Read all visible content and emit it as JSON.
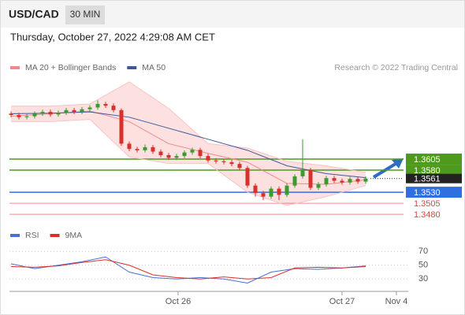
{
  "chart_data": [
    {
      "type": "candlestick",
      "title": "USD/CAD",
      "timeframe": "30 MIN",
      "subtitle": "Thursday, October 27, 2022 4:29:08 AM CET",
      "source": "Research © 2022 Trading Central",
      "xlim": [
        -0.2,
        50.4
      ],
      "ylim": [
        1.3457,
        1.3796
      ],
      "open": [
        1.3708,
        1.3705,
        1.37,
        1.3702,
        1.3708,
        1.3712,
        1.3706,
        1.371,
        1.3716,
        1.3712,
        1.3718,
        1.3722,
        1.373,
        1.3726,
        1.3716,
        1.364,
        1.3628,
        1.3625,
        1.3632,
        1.3622,
        1.3614,
        1.3608,
        1.3612,
        1.362,
        1.3626,
        1.3612,
        1.3602,
        1.36,
        1.3598,
        1.3594,
        1.3585,
        1.3545,
        1.3528,
        1.352,
        1.3538,
        1.3524,
        1.3545,
        1.3566,
        1.358,
        1.354,
        1.3548,
        1.3562,
        1.3556,
        1.3552,
        1.356,
        1.3554
      ],
      "high": [
        1.3713,
        1.371,
        1.3707,
        1.3713,
        1.3717,
        1.3717,
        1.3715,
        1.3721,
        1.3721,
        1.3723,
        1.3727,
        1.3738,
        1.3735,
        1.3731,
        1.372,
        1.3645,
        1.3633,
        1.3638,
        1.3637,
        1.3627,
        1.3619,
        1.3617,
        1.3625,
        1.3631,
        1.3631,
        1.3617,
        1.3607,
        1.3605,
        1.3603,
        1.3599,
        1.359,
        1.355,
        1.3533,
        1.3543,
        1.3543,
        1.355,
        1.3571,
        1.365,
        1.3585,
        1.3553,
        1.3567,
        1.3567,
        1.3561,
        1.3565,
        1.3565,
        1.3566
      ],
      "low": [
        1.37,
        1.3695,
        1.3695,
        1.3697,
        1.3703,
        1.3701,
        1.3701,
        1.3705,
        1.3707,
        1.3707,
        1.3713,
        1.3717,
        1.3721,
        1.3711,
        1.3635,
        1.3623,
        1.362,
        1.362,
        1.3617,
        1.3609,
        1.3603,
        1.3603,
        1.3607,
        1.3615,
        1.3607,
        1.3597,
        1.3595,
        1.3593,
        1.3589,
        1.358,
        1.354,
        1.352,
        1.3512,
        1.3515,
        1.3512,
        1.3519,
        1.354,
        1.3561,
        1.3535,
        1.3535,
        1.3543,
        1.3551,
        1.3547,
        1.3547,
        1.3549,
        1.3549
      ],
      "close": [
        1.3705,
        1.37,
        1.3702,
        1.3708,
        1.3712,
        1.3706,
        1.371,
        1.3716,
        1.3712,
        1.3718,
        1.3722,
        1.373,
        1.3726,
        1.3716,
        1.364,
        1.3628,
        1.3625,
        1.3632,
        1.3622,
        1.3614,
        1.3608,
        1.3612,
        1.362,
        1.3626,
        1.3612,
        1.3602,
        1.36,
        1.3598,
        1.3594,
        1.3585,
        1.3545,
        1.3528,
        1.352,
        1.3538,
        1.3524,
        1.3545,
        1.3566,
        1.358,
        1.354,
        1.3548,
        1.3562,
        1.3556,
        1.3552,
        1.356,
        1.3554,
        1.3561
      ],
      "up_color": "#3a9b2f",
      "down_color": "#d9302c",
      "series": [
        {
          "name": "MA 20 + Bollinger Bands",
          "color": "#f08a8a",
          "band_color": "#fde0e0",
          "x": [
            0,
            5,
            10,
            15,
            20,
            25,
            30,
            35,
            40,
            45
          ],
          "values": [
            1.3702,
            1.3708,
            1.3714,
            1.369,
            1.364,
            1.3618,
            1.3598,
            1.355,
            1.3548,
            1.3558
          ],
          "upper": [
            1.3725,
            1.3725,
            1.373,
            1.378,
            1.372,
            1.364,
            1.363,
            1.36,
            1.359,
            1.3575
          ],
          "lower": [
            1.369,
            1.369,
            1.3695,
            1.361,
            1.3595,
            1.3595,
            1.353,
            1.35,
            1.352,
            1.3545
          ]
        },
        {
          "name": "MA 50",
          "color": "#3a5a9a",
          "x": [
            0,
            5,
            10,
            15,
            20,
            25,
            30,
            35,
            40,
            45
          ],
          "values": [
            1.3708,
            1.3709,
            1.3712,
            1.37,
            1.3675,
            1.365,
            1.3625,
            1.359,
            1.3572,
            1.3563
          ]
        }
      ],
      "levels": [
        {
          "value": 1.3605,
          "color": "#4e9a1c",
          "boxed": true
        },
        {
          "value": {
            "value": 1.358,
            "label": "1.3580"
          },
          "color": "#4e9a1c",
          "boxed": true
        },
        {
          "value": {
            "value": 1.353,
            "label": "1.3530"
          },
          "color": "#2f6fe0",
          "boxed": true
        },
        {
          "value": 1.3505,
          "color": "#e04040",
          "boxed": false
        },
        {
          "value": {
            "value": 1.348,
            "label": "1.3480"
          },
          "color": "#e04040",
          "boxed": false
        }
      ],
      "last": 1.3561,
      "last_color": "#222222"
    },
    {
      "type": "line",
      "xlim": [
        -0.2,
        50.4
      ],
      "ylim": [
        12,
        92
      ],
      "yticks": [
        30,
        50,
        70
      ],
      "xticks": [
        {
          "value": 21.2,
          "label": "Oct 26"
        },
        {
          "value": 42,
          "label": "Oct 27"
        },
        {
          "value": 48.9,
          "label": "Nov 4"
        }
      ],
      "series": [
        {
          "name": "RSI",
          "color": "#4a6fd6",
          "x": [
            0,
            3,
            6,
            9,
            12,
            15,
            18,
            21,
            24,
            27,
            30,
            33,
            36,
            39,
            42,
            45
          ],
          "values": [
            52,
            45,
            50,
            55,
            62,
            40,
            32,
            30,
            32,
            30,
            24,
            40,
            45,
            44,
            46,
            49
          ]
        },
        {
          "name": "9MA",
          "color": "#d9302c",
          "x": [
            0,
            3,
            6,
            9,
            12,
            15,
            18,
            21,
            24,
            27,
            30,
            33,
            36,
            39,
            42,
            45
          ],
          "values": [
            48,
            47,
            49,
            54,
            58,
            50,
            36,
            32,
            30,
            33,
            30,
            32,
            46,
            47,
            46,
            48
          ]
        }
      ]
    }
  ]
}
